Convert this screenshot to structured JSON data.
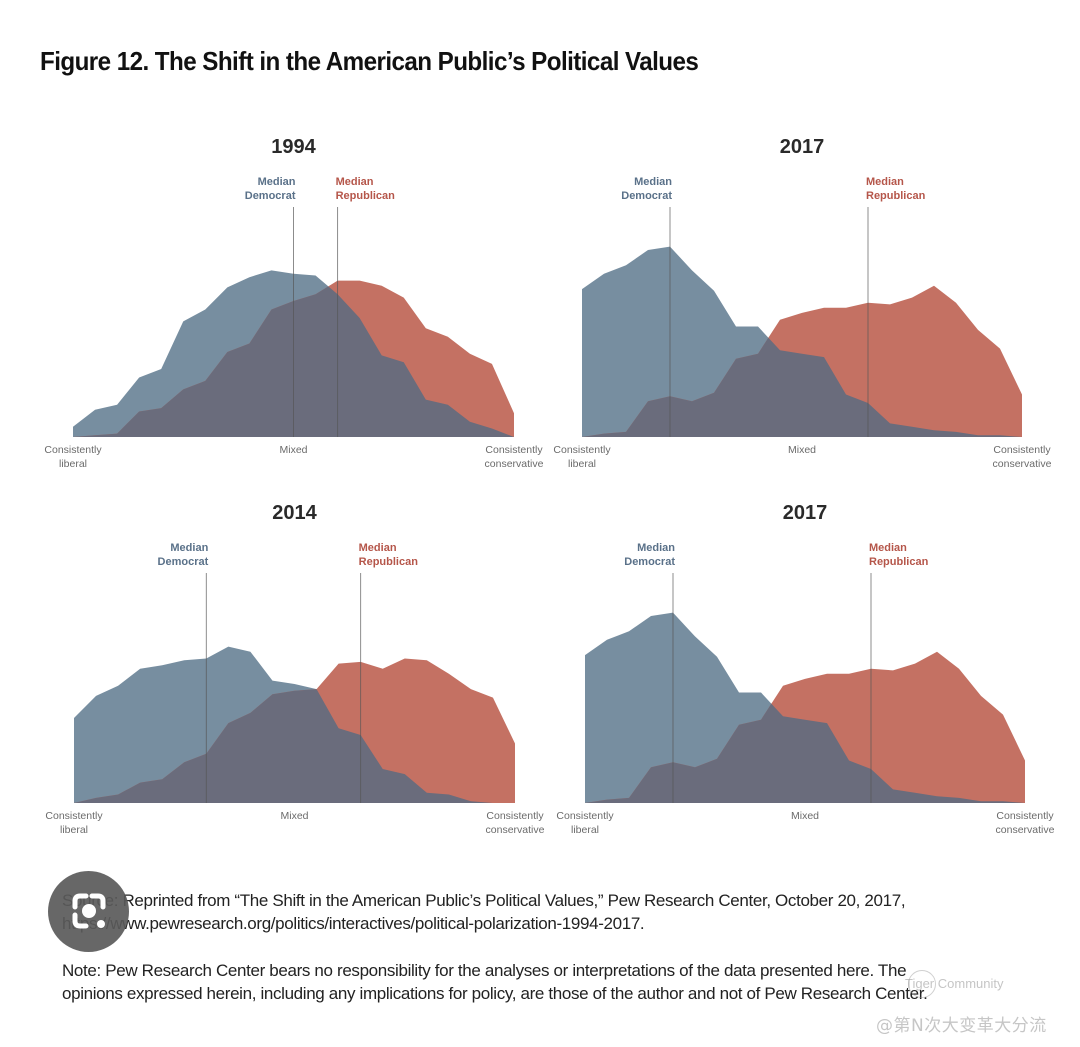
{
  "figure": {
    "title": "Figure 12. The Shift in the American Public’s Political Values"
  },
  "colors": {
    "democrat": "#778EA0",
    "republican": "#C47163",
    "overlap": "#6A6C7C",
    "democrat_label": "#5A7189",
    "republican_label": "#B5564A",
    "median_line": "#555555"
  },
  "chart_data": [
    {
      "type": "area",
      "title": "1994",
      "position": "top-left",
      "x_scale": "ideological consistency scale (21 points)",
      "x": [
        0,
        1,
        2,
        3,
        4,
        5,
        6,
        7,
        8,
        9,
        10,
        11,
        12,
        13,
        14,
        15,
        16,
        17,
        18,
        19,
        20
      ],
      "xlim": [
        0,
        20
      ],
      "ylim": [
        0,
        120
      ],
      "x_tick_labels": [
        {
          "at": 0,
          "lines": [
            "Consistently",
            "liberal"
          ]
        },
        {
          "at": 10,
          "lines": [
            "Mixed"
          ]
        },
        {
          "at": 20,
          "lines": [
            "Consistently",
            "conservative"
          ]
        }
      ],
      "series": [
        {
          "name": "Democrats",
          "color_key": "democrat",
          "values": [
            6,
            16,
            19,
            35,
            40,
            68,
            75,
            88,
            94,
            98,
            96,
            95,
            84,
            70,
            48,
            44,
            22,
            19,
            9,
            5,
            0
          ]
        },
        {
          "name": "Republicans",
          "color_key": "republican",
          "values": [
            0,
            1,
            2,
            15,
            17,
            28,
            33,
            50,
            55,
            75,
            80,
            84,
            92,
            92,
            89,
            82,
            64,
            59,
            49,
            43,
            14
          ]
        }
      ],
      "medians": [
        {
          "label_lines": [
            "Median",
            "Democrat"
          ],
          "party": "democrat",
          "x": 10
        },
        {
          "label_lines": [
            "Median",
            "Republican"
          ],
          "party": "republican",
          "x": 12
        }
      ],
      "grid": false,
      "legend": "none"
    },
    {
      "type": "area",
      "title": "2017",
      "position": "top-right",
      "x_scale": "ideological consistency scale (21 points)",
      "x": [
        0,
        1,
        2,
        3,
        4,
        5,
        6,
        7,
        8,
        9,
        10,
        11,
        12,
        13,
        14,
        15,
        16,
        17,
        18,
        19,
        20
      ],
      "xlim": [
        0,
        20
      ],
      "ylim": [
        0,
        120
      ],
      "x_tick_labels": [
        {
          "at": 0,
          "lines": [
            "Consistently",
            "liberal"
          ]
        },
        {
          "at": 10,
          "lines": [
            "Mixed"
          ]
        },
        {
          "at": 20,
          "lines": [
            "Consistently",
            "conservative"
          ]
        }
      ],
      "series": [
        {
          "name": "Democrats",
          "color_key": "democrat",
          "values": [
            87,
            96,
            101,
            110,
            112,
            98,
            86,
            65,
            65,
            51,
            49,
            47,
            25,
            20,
            8,
            6,
            4,
            3,
            1,
            1,
            0
          ]
        },
        {
          "name": "Republicans",
          "color_key": "republican",
          "values": [
            0,
            2,
            3,
            21,
            24,
            21,
            26,
            46,
            49,
            69,
            73,
            76,
            76,
            79,
            78,
            82,
            89,
            79,
            63,
            52,
            25
          ]
        }
      ],
      "medians": [
        {
          "label_lines": [
            "Median",
            "Democrat"
          ],
          "party": "democrat",
          "x": 4
        },
        {
          "label_lines": [
            "Median",
            "Republican"
          ],
          "party": "republican",
          "x": 13
        }
      ],
      "grid": false,
      "legend": "none"
    },
    {
      "type": "area",
      "title": "2014",
      "position": "bottom-left",
      "x_scale": "ideological consistency scale (21 points)",
      "x": [
        0,
        1,
        2,
        3,
        4,
        5,
        6,
        7,
        8,
        9,
        10,
        11,
        12,
        13,
        14,
        15,
        16,
        17,
        18,
        19,
        20
      ],
      "xlim": [
        0,
        20
      ],
      "ylim": [
        0,
        120
      ],
      "x_tick_labels": [
        {
          "at": 0,
          "lines": [
            "Consistently",
            "liberal"
          ]
        },
        {
          "at": 10,
          "lines": [
            "Mixed"
          ]
        },
        {
          "at": 20,
          "lines": [
            "Consistently",
            "conservative"
          ]
        }
      ],
      "series": [
        {
          "name": "Democrats",
          "color_key": "democrat",
          "values": [
            50,
            63,
            69,
            79,
            81,
            84,
            85,
            92,
            89,
            72,
            70,
            67,
            44,
            40,
            20,
            17,
            6,
            5,
            1,
            0,
            0
          ]
        },
        {
          "name": "Republicans",
          "color_key": "republican",
          "values": [
            0,
            3,
            5,
            12,
            14,
            24,
            29,
            47,
            53,
            64,
            66,
            67,
            82,
            83,
            79,
            85,
            84,
            76,
            67,
            62,
            35
          ]
        }
      ],
      "medians": [
        {
          "label_lines": [
            "Median",
            "Democrat"
          ],
          "party": "democrat",
          "x": 6
        },
        {
          "label_lines": [
            "Median",
            "Republican"
          ],
          "party": "republican",
          "x": 13
        }
      ],
      "grid": false,
      "legend": "none"
    },
    {
      "type": "area",
      "title": "2017",
      "position": "bottom-right",
      "x_scale": "ideological consistency scale (21 points)",
      "x": [
        0,
        1,
        2,
        3,
        4,
        5,
        6,
        7,
        8,
        9,
        10,
        11,
        12,
        13,
        14,
        15,
        16,
        17,
        18,
        19,
        20
      ],
      "xlim": [
        0,
        20
      ],
      "ylim": [
        0,
        120
      ],
      "x_tick_labels": [
        {
          "at": 0,
          "lines": [
            "Consistently",
            "liberal"
          ]
        },
        {
          "at": 10,
          "lines": [
            "Mixed"
          ]
        },
        {
          "at": 20,
          "lines": [
            "Consistently",
            "conservative"
          ]
        }
      ],
      "series": [
        {
          "name": "Democrats",
          "color_key": "democrat",
          "values": [
            87,
            96,
            101,
            110,
            112,
            98,
            86,
            65,
            65,
            51,
            49,
            47,
            25,
            20,
            8,
            6,
            4,
            3,
            1,
            1,
            0
          ]
        },
        {
          "name": "Republicans",
          "color_key": "republican",
          "values": [
            0,
            2,
            3,
            21,
            24,
            21,
            26,
            46,
            49,
            69,
            73,
            76,
            76,
            79,
            78,
            82,
            89,
            79,
            63,
            52,
            25
          ]
        }
      ],
      "medians": [
        {
          "label_lines": [
            "Median",
            "Democrat"
          ],
          "party": "democrat",
          "x": 4
        },
        {
          "label_lines": [
            "Median",
            "Republican"
          ],
          "party": "republican",
          "x": 13
        }
      ],
      "grid": false,
      "legend": "none"
    }
  ],
  "notes": {
    "source_line1": "Source: Reprinted from “The Shift in the American Public’s Political Values,” Pew Research Center, October 20, 2017,",
    "source_line2": "https://www.pewresearch.org/politics/interactives/political-polarization-1994-2017.",
    "note_line1": "Note: Pew Research Center bears no responsibility for the analyses or interpretations of the data presented here. The",
    "note_line2": "opinions expressed herein, including any implications for policy, are those of the author and not of Pew Research Center."
  },
  "overlay": {
    "lens_button_icon": "lens-search-icon",
    "watermark_community": "Tiger Community",
    "watermark_handle": "@第N次大变革大分流"
  }
}
